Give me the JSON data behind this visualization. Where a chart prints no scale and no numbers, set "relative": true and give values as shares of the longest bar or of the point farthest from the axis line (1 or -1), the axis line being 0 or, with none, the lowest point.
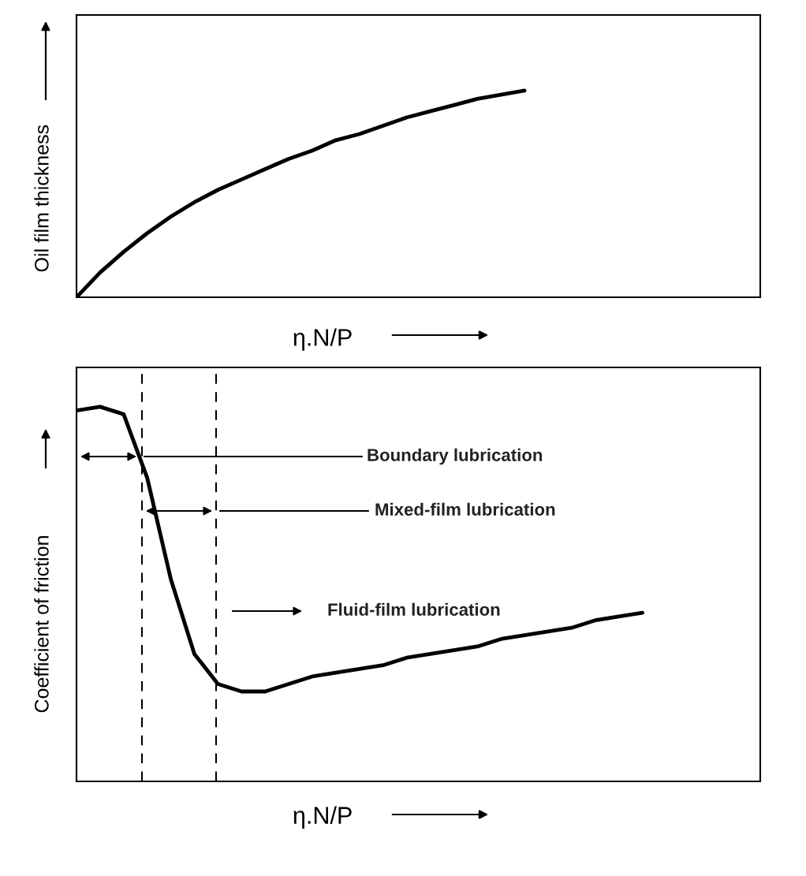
{
  "chart_data": [
    {
      "type": "line",
      "relative": true,
      "ylabel": "Oil film thickness",
      "xlabel": "η.N/P",
      "color": "#000000",
      "categories": [
        null,
        null,
        null,
        null,
        null,
        null,
        null,
        null,
        null,
        null,
        null,
        null,
        null,
        null,
        null,
        null,
        null,
        null,
        null,
        null,
        null,
        null,
        null,
        null,
        null,
        null,
        null,
        null,
        null,
        null
      ],
      "values": [
        0,
        0.12,
        0.22,
        0.31,
        0.39,
        0.46,
        0.52,
        0.57,
        0.62,
        0.67,
        0.71,
        0.76,
        0.79,
        0.83,
        0.87,
        0.9,
        0.93,
        0.96,
        0.98,
        1.0,
        null,
        null,
        null,
        null,
        null,
        null,
        null,
        null,
        null,
        null
      ]
    },
    {
      "type": "line",
      "relative": true,
      "ylabel": "Coefficient of friction",
      "xlabel": "η.N/P",
      "color": "#000000",
      "categories": [
        null,
        null,
        null,
        null,
        null,
        null,
        null,
        null,
        null,
        null,
        null,
        null,
        null,
        null,
        null,
        null,
        null,
        null,
        null,
        null,
        null,
        null,
        null,
        null,
        null,
        null,
        null,
        null,
        null,
        null
      ],
      "values": [
        0.99,
        1.0,
        0.98,
        0.81,
        0.54,
        0.34,
        0.26,
        0.24,
        0.24,
        0.26,
        0.28,
        0.29,
        0.3,
        0.31,
        0.33,
        0.34,
        0.35,
        0.36,
        0.38,
        0.39,
        0.4,
        0.41,
        0.43,
        0.44,
        0.45,
        null,
        null,
        null,
        null,
        null
      ],
      "annotations": [
        "Boundary lubrication",
        "Mixed-film lubrication",
        "Fluid-film lubrication"
      ]
    }
  ]
}
